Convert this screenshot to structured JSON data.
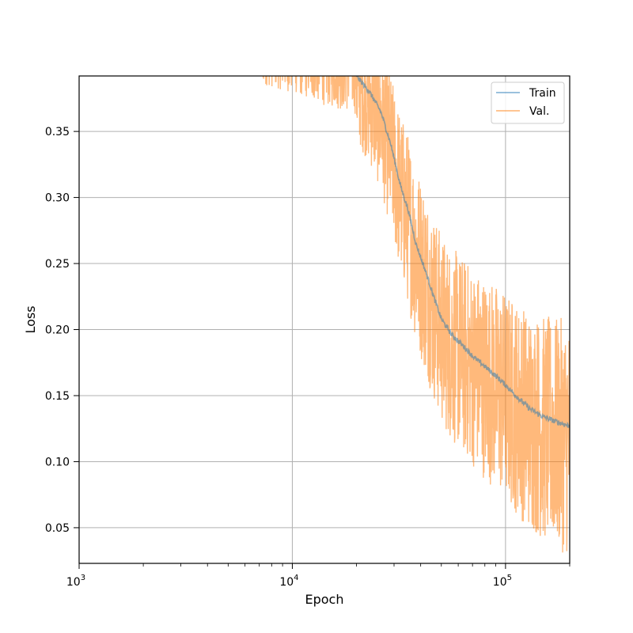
{
  "chart_data": {
    "type": "line",
    "title": "",
    "xlabel": "Epoch",
    "ylabel": "Loss",
    "xscale": "log",
    "xlim": [
      1000,
      200000
    ],
    "ylim": [
      0.023,
      0.392
    ],
    "grid": true,
    "legend_position": "top-right",
    "x_ticks": [
      {
        "value": 1000,
        "base": "10",
        "exp": "3"
      },
      {
        "value": 10000,
        "base": "10",
        "exp": "4"
      },
      {
        "value": 100000,
        "base": "10",
        "exp": "5"
      }
    ],
    "y_ticks": [
      {
        "value": 0.05,
        "label": "0.05"
      },
      {
        "value": 0.1,
        "label": "0.10"
      },
      {
        "value": 0.15,
        "label": "0.15"
      },
      {
        "value": 0.2,
        "label": "0.20"
      },
      {
        "value": 0.25,
        "label": "0.25"
      },
      {
        "value": 0.3,
        "label": "0.30"
      },
      {
        "value": 0.35,
        "label": "0.35"
      }
    ],
    "series": [
      {
        "name": "Train",
        "color": "#1f77b4",
        "points": [
          [
            20000,
            0.392
          ],
          [
            23000,
            0.38
          ],
          [
            26000,
            0.365
          ],
          [
            29000,
            0.34
          ],
          [
            32000,
            0.31
          ],
          [
            35000,
            0.29
          ],
          [
            38000,
            0.265
          ],
          [
            42000,
            0.245
          ],
          [
            46000,
            0.225
          ],
          [
            50000,
            0.208
          ],
          [
            56000,
            0.196
          ],
          [
            63000,
            0.188
          ],
          [
            70000,
            0.18
          ],
          [
            80000,
            0.172
          ],
          [
            90000,
            0.165
          ],
          [
            100000,
            0.158
          ],
          [
            115000,
            0.148
          ],
          [
            130000,
            0.14
          ],
          [
            150000,
            0.134
          ],
          [
            175000,
            0.13
          ],
          [
            200000,
            0.127
          ]
        ]
      },
      {
        "name": "Val.",
        "color": "#ff7f0e",
        "noise_envelope": [
          [
            6500,
            0.022
          ],
          [
            10000,
            0.03
          ],
          [
            15000,
            0.04
          ],
          [
            20000,
            0.045
          ],
          [
            30000,
            0.06
          ],
          [
            40000,
            0.07
          ],
          [
            60000,
            0.075
          ],
          [
            100000,
            0.08
          ],
          [
            200000,
            0.09
          ]
        ]
      }
    ]
  }
}
